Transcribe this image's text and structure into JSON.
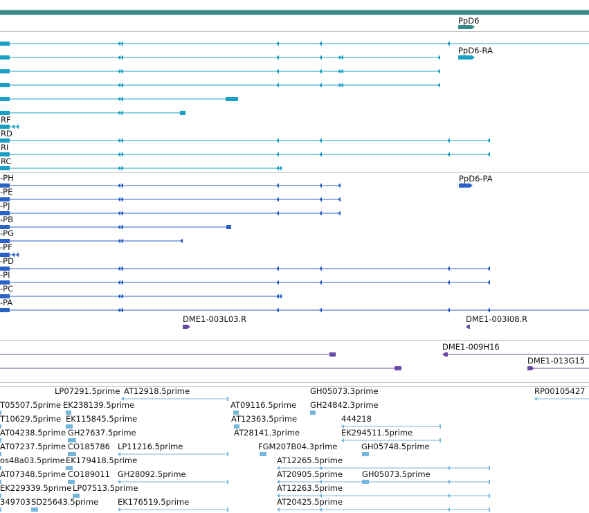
{
  "track_colors": {
    "gene_bar": "#3a8c8c",
    "transcript_rna": "#1aa0c4",
    "transcript_protein": "#2a62c8",
    "bac_clone": "#6a4aa8",
    "est": "#74b6dc",
    "separator": "#c8c8c8"
  },
  "labels": {
    "gene": "PpD6",
    "rna_main": "PpD6-RA",
    "rna_rf": "RF",
    "rna_rd": "RD",
    "rna_ri": "RI",
    "rna_rc": "RC",
    "prot_main": "PpD6-PA",
    "prot_ph": "-PH",
    "prot_pe": "-PE",
    "prot_pj": "-PJ",
    "prot_pb": "-PB",
    "prot_pg": "-PG",
    "prot_pf": "-PF",
    "prot_pd": "-PD",
    "prot_pi": "-PI",
    "prot_pc": "-PC",
    "prot_pa": "-PA",
    "bac_1": "DME1-003L03.R",
    "bac_2": "DME1-003I08.R",
    "bac_3": "DME1-009H16",
    "bac_4": "DME1-013G15",
    "est_1": "LP07291.5prime",
    "est_2": "AT12918.5prime",
    "est_3": "GH05073.3prime",
    "est_4": "RP00105427",
    "est_5": "T05507.5prime",
    "est_6": "EK238139.5prime",
    "est_7": "AT09116.5prime",
    "est_8": "GH24842.3prime",
    "est_9": "T10629.5prime",
    "est_10": "EK115845.5prime",
    "est_11": "AT12363.5prime",
    "est_12": "444218",
    "est_13": "AT04238.5prime",
    "est_14": "GH27637.5prime",
    "est_15": "AT28141.3prime",
    "est_16": "EK294511.5prime",
    "est_17": "AT07237.5prime",
    "est_18": "CO185786",
    "est_19": "LP11216.5prime",
    "est_20": "FGM207B04.3prime",
    "est_21": "GH05748.5prime",
    "est_22": "os48a03.5prime",
    "est_23": "EK179418.5prime",
    "est_24": "AT12265.5prime",
    "est_25": "AT07348.5prime",
    "est_26": "CO189011",
    "est_27": "GH28092.5prime",
    "est_28": "AT20905.5prime",
    "est_29": "GH05073.5prime",
    "est_30": "EK229339.5prime",
    "est_31": "LP07513.5prime",
    "est_32": "AT12263.5prime",
    "est_33": "349703",
    "est_34": "SD25643.5prime",
    "est_35": "EK176519.5prime",
    "est_36": "AT20425.5prime"
  }
}
